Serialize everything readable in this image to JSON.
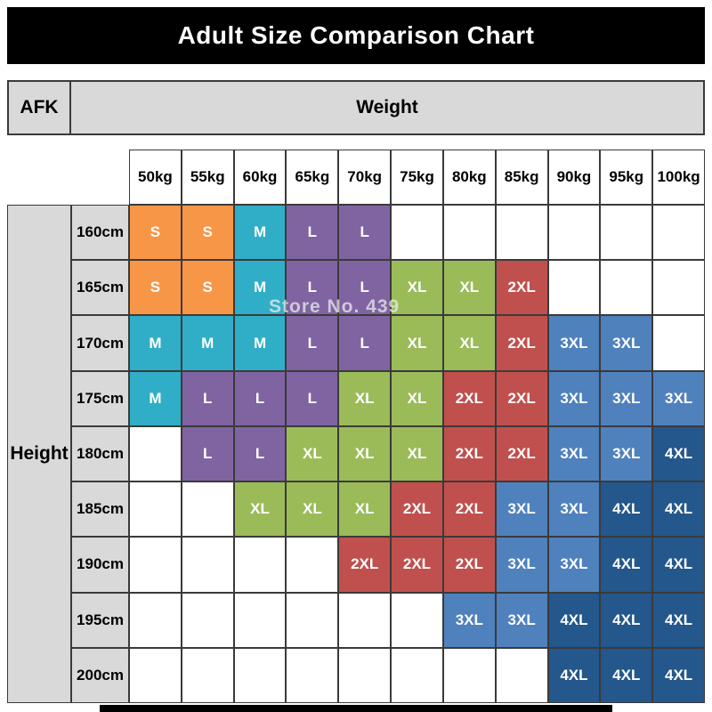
{
  "title": "Adult Size Comparison Chart",
  "corner_label": "AFK",
  "axis": {
    "weight_label": "Weight",
    "height_label": "Height"
  },
  "watermark": "Store No. 439",
  "colors": {
    "header_bg": "#d9d9d9",
    "border": "#3a3a3a",
    "title_bg": "#000000",
    "title_text": "#ffffff"
  },
  "chart_data": {
    "type": "heatmap",
    "title": "Adult Size Comparison Chart",
    "xlabel": "Weight",
    "ylabel": "Height",
    "x_categories": [
      "50kg",
      "55kg",
      "60kg",
      "65kg",
      "70kg",
      "75kg",
      "80kg",
      "85kg",
      "90kg",
      "95kg",
      "100kg"
    ],
    "y_categories": [
      "160cm",
      "165cm",
      "170cm",
      "175cm",
      "180cm",
      "185cm",
      "190cm",
      "195cm",
      "200cm"
    ],
    "values": [
      [
        "S",
        "S",
        "M",
        "L",
        "L",
        "",
        "",
        "",
        "",
        "",
        ""
      ],
      [
        "S",
        "S",
        "M",
        "L",
        "L",
        "XL",
        "XL",
        "2XL",
        "",
        "",
        ""
      ],
      [
        "M",
        "M",
        "M",
        "L",
        "L",
        "XL",
        "XL",
        "2XL",
        "3XL",
        "3XL",
        ""
      ],
      [
        "M",
        "L",
        "L",
        "L",
        "XL",
        "XL",
        "2XL",
        "2XL",
        "3XL",
        "3XL",
        "3XL"
      ],
      [
        "",
        "L",
        "L",
        "XL",
        "XL",
        "XL",
        "2XL",
        "2XL",
        "3XL",
        "3XL",
        "4XL"
      ],
      [
        "",
        "",
        "XL",
        "XL",
        "XL",
        "2XL",
        "2XL",
        "3XL",
        "3XL",
        "4XL",
        "4XL"
      ],
      [
        "",
        "",
        "",
        "",
        "2XL",
        "2XL",
        "2XL",
        "3XL",
        "3XL",
        "4XL",
        "4XL"
      ],
      [
        "",
        "",
        "",
        "",
        "",
        "",
        "3XL",
        "3XL",
        "4XL",
        "4XL",
        "4XL"
      ],
      [
        "",
        "",
        "",
        "",
        "",
        "",
        "",
        "",
        "4XL",
        "4XL",
        "4XL"
      ]
    ],
    "size_colors": {
      "S": "#f79646",
      "M": "#31aec7",
      "L": "#8064a2",
      "XL": "#9bbb59",
      "2XL": "#c0504d",
      "3XL": "#4f81bd",
      "4XL": "#24578b"
    },
    "grid": true,
    "legend_position": "none"
  }
}
